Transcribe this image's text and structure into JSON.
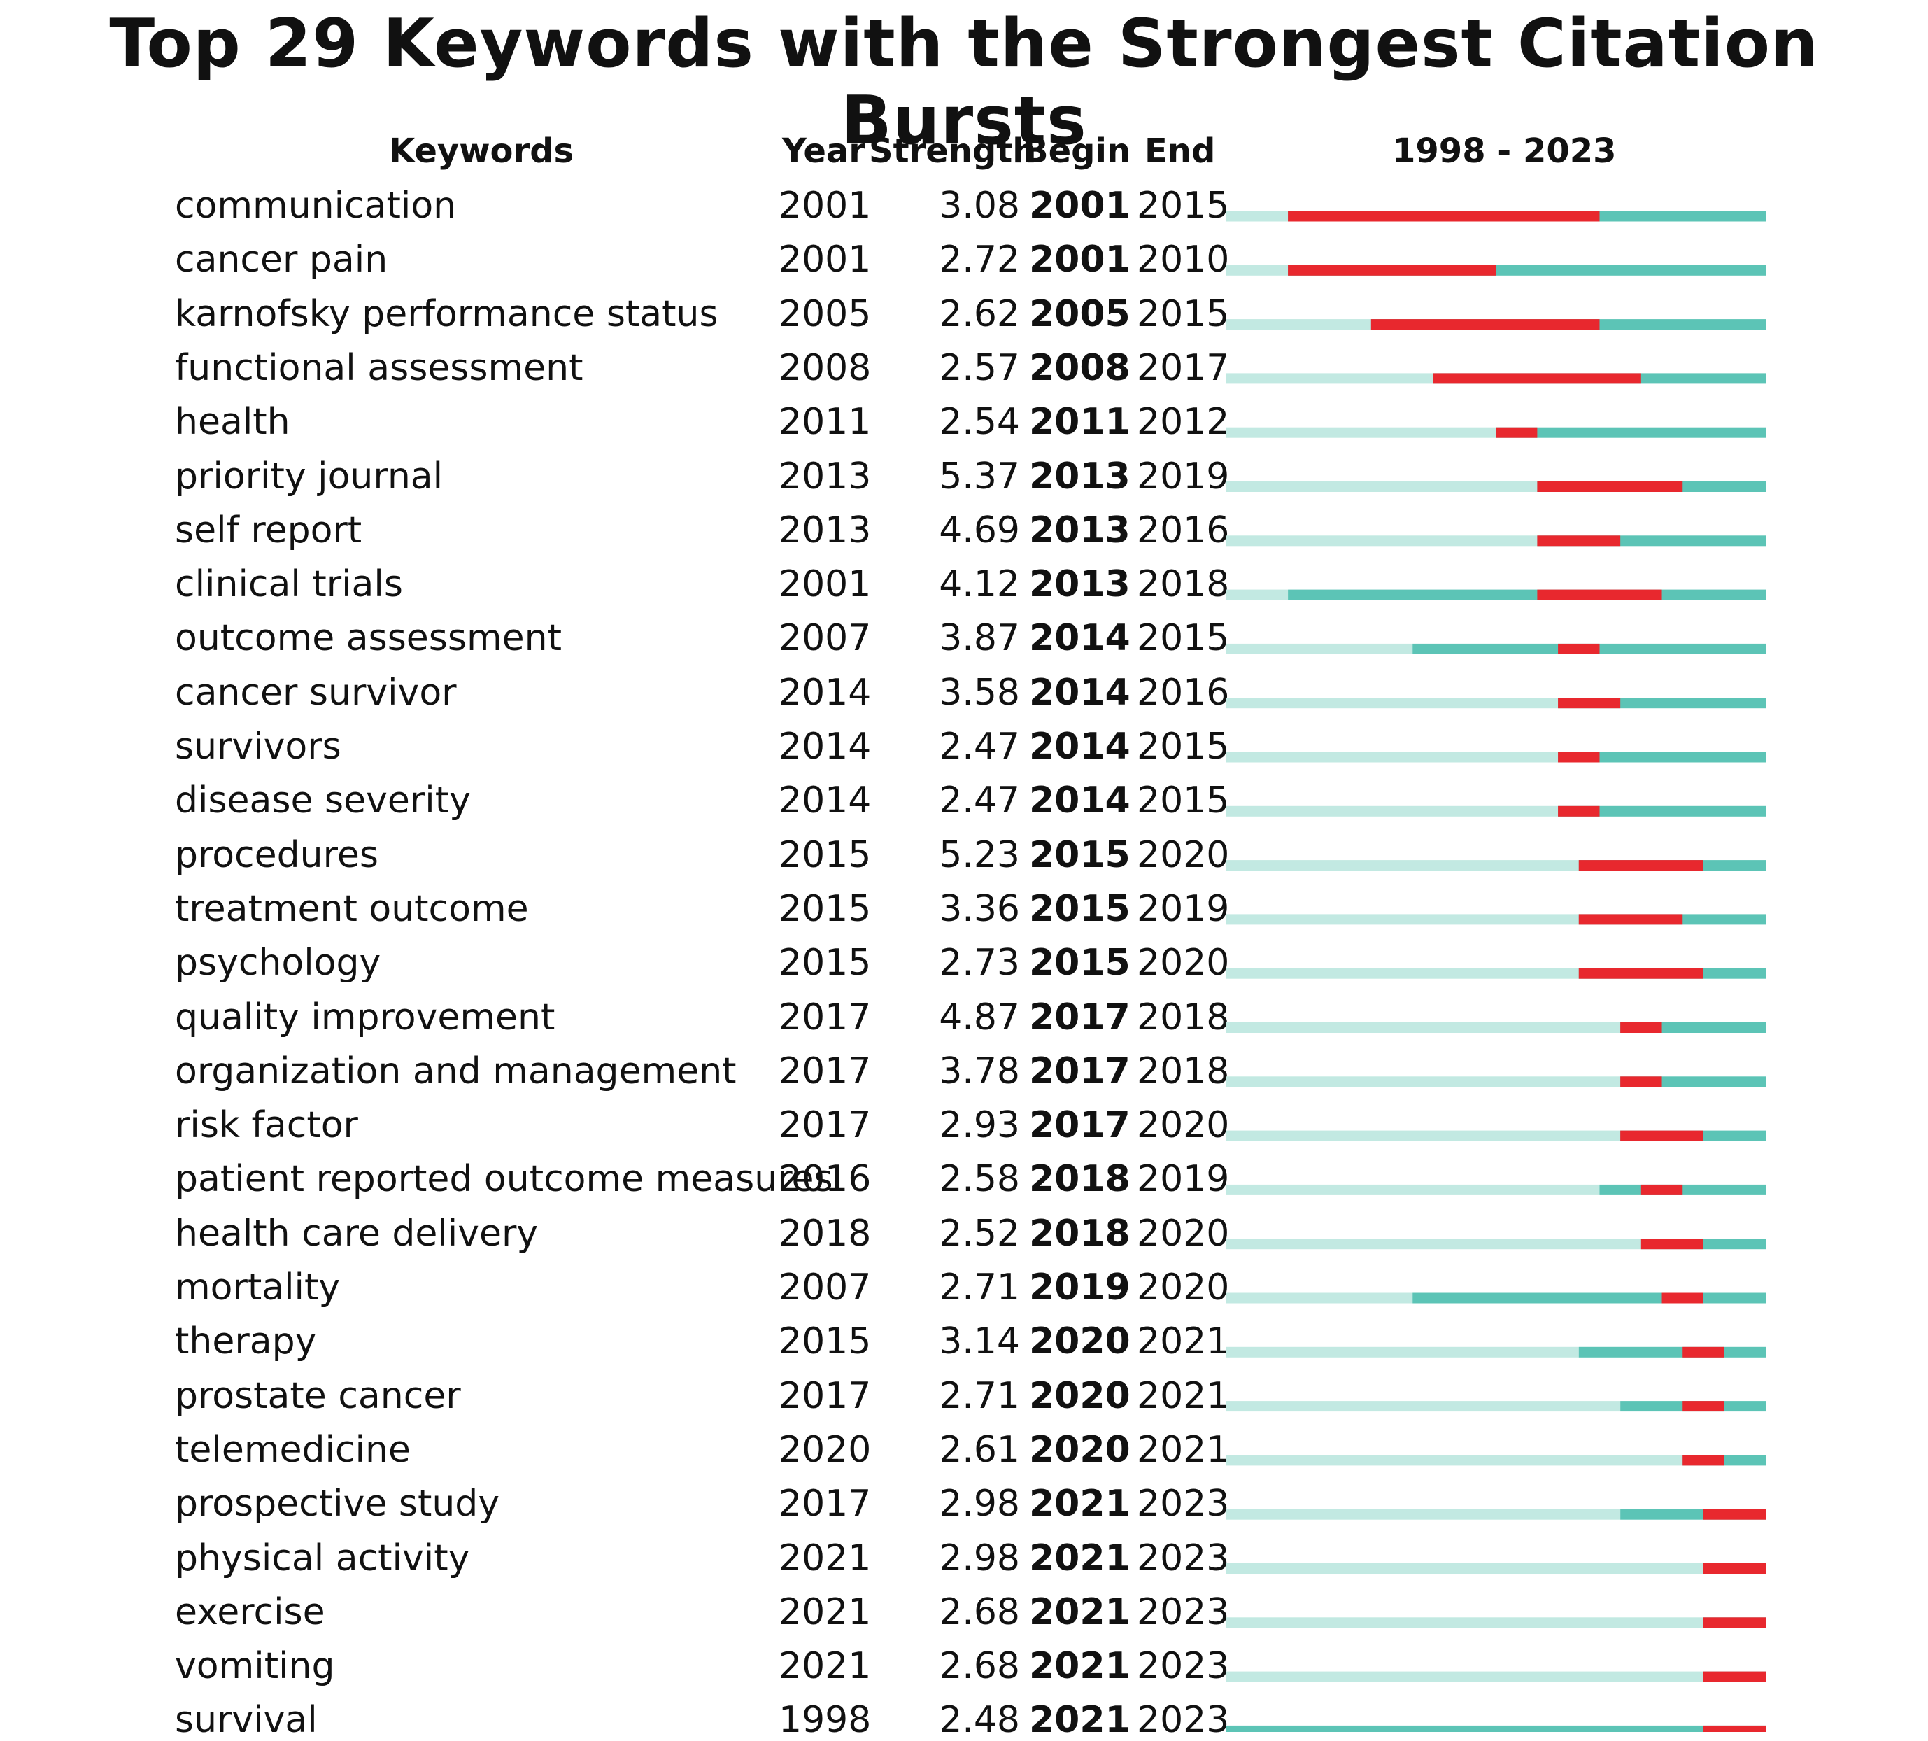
{
  "chart_data": {
    "type": "table",
    "title": "Top 29 Keywords with the Strongest Citation Bursts",
    "headers": {
      "keywords": "Keywords",
      "year": "Year",
      "strength": "Strength",
      "begin": "Begin",
      "end": "End",
      "range": "1998 - 2023"
    },
    "timeline_start": 1998,
    "timeline_end": 2023,
    "colors": {
      "before_first_year": "#c2e9e2",
      "active": "#5cc4b6",
      "burst": "#e8282e"
    },
    "rows": [
      {
        "keyword": "communication",
        "year": "2001",
        "strength": "3.08",
        "begin": "2001",
        "end": "2015"
      },
      {
        "keyword": "cancer pain",
        "year": "2001",
        "strength": "2.72",
        "begin": "2001",
        "end": "2010"
      },
      {
        "keyword": "karnofsky performance status",
        "year": "2005",
        "strength": "2.62",
        "begin": "2005",
        "end": "2015"
      },
      {
        "keyword": "functional assessment",
        "year": "2008",
        "strength": "2.57",
        "begin": "2008",
        "end": "2017"
      },
      {
        "keyword": "health",
        "year": "2011",
        "strength": "2.54",
        "begin": "2011",
        "end": "2012"
      },
      {
        "keyword": "priority journal",
        "year": "2013",
        "strength": "5.37",
        "begin": "2013",
        "end": "2019"
      },
      {
        "keyword": "self report",
        "year": "2013",
        "strength": "4.69",
        "begin": "2013",
        "end": "2016"
      },
      {
        "keyword": "clinical trials",
        "year": "2001",
        "strength": "4.12",
        "begin": "2013",
        "end": "2018"
      },
      {
        "keyword": "outcome assessment",
        "year": "2007",
        "strength": "3.87",
        "begin": "2014",
        "end": "2015"
      },
      {
        "keyword": "cancer survivor",
        "year": "2014",
        "strength": "3.58",
        "begin": "2014",
        "end": "2016"
      },
      {
        "keyword": "survivors",
        "year": "2014",
        "strength": "2.47",
        "begin": "2014",
        "end": "2015"
      },
      {
        "keyword": "disease severity",
        "year": "2014",
        "strength": "2.47",
        "begin": "2014",
        "end": "2015"
      },
      {
        "keyword": "procedures",
        "year": "2015",
        "strength": "5.23",
        "begin": "2015",
        "end": "2020"
      },
      {
        "keyword": "treatment outcome",
        "year": "2015",
        "strength": "3.36",
        "begin": "2015",
        "end": "2019"
      },
      {
        "keyword": "psychology",
        "year": "2015",
        "strength": "2.73",
        "begin": "2015",
        "end": "2020"
      },
      {
        "keyword": "quality improvement",
        "year": "2017",
        "strength": "4.87",
        "begin": "2017",
        "end": "2018"
      },
      {
        "keyword": "organization and management",
        "year": "2017",
        "strength": "3.78",
        "begin": "2017",
        "end": "2018"
      },
      {
        "keyword": "risk factor",
        "year": "2017",
        "strength": "2.93",
        "begin": "2017",
        "end": "2020"
      },
      {
        "keyword": "patient reported outcome measures",
        "year": "2016",
        "strength": "2.58",
        "begin": "2018",
        "end": "2019"
      },
      {
        "keyword": "health care delivery",
        "year": "2018",
        "strength": "2.52",
        "begin": "2018",
        "end": "2020"
      },
      {
        "keyword": "mortality",
        "year": "2007",
        "strength": "2.71",
        "begin": "2019",
        "end": "2020"
      },
      {
        "keyword": "therapy",
        "year": "2015",
        "strength": "3.14",
        "begin": "2020",
        "end": "2021"
      },
      {
        "keyword": "prostate cancer",
        "year": "2017",
        "strength": "2.71",
        "begin": "2020",
        "end": "2021"
      },
      {
        "keyword": "telemedicine",
        "year": "2020",
        "strength": "2.61",
        "begin": "2020",
        "end": "2021"
      },
      {
        "keyword": "prospective study",
        "year": "2017",
        "strength": "2.98",
        "begin": "2021",
        "end": "2023"
      },
      {
        "keyword": "physical activity",
        "year": "2021",
        "strength": "2.98",
        "begin": "2021",
        "end": "2023"
      },
      {
        "keyword": "exercise",
        "year": "2021",
        "strength": "2.68",
        "begin": "2021",
        "end": "2023"
      },
      {
        "keyword": "vomiting",
        "year": "2021",
        "strength": "2.68",
        "begin": "2021",
        "end": "2023"
      },
      {
        "keyword": "survival",
        "year": "1998",
        "strength": "2.48",
        "begin": "2021",
        "end": "2023"
      }
    ]
  }
}
